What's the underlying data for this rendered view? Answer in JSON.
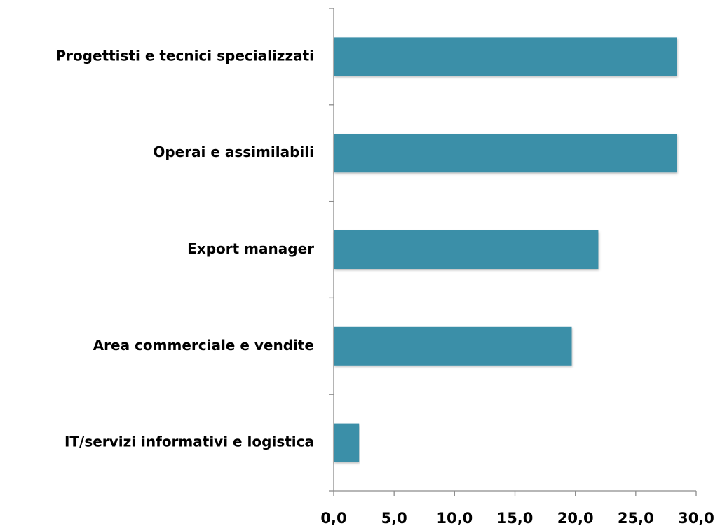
{
  "chart_data": {
    "type": "bar",
    "orientation": "horizontal",
    "categories": [
      "Progettisti e tecnici specializzati",
      "Operai e assimilabili",
      "Export manager",
      "Area commerciale e vendite",
      "IT/servizi informativi e logistica"
    ],
    "values": [
      28.4,
      28.4,
      21.9,
      19.7,
      2.1
    ],
    "color": "#3a8fa8",
    "xlim": [
      0,
      30
    ],
    "xticks": [
      {
        "value": 0,
        "label": "0,0"
      },
      {
        "value": 5,
        "label": "5,0"
      },
      {
        "value": 10,
        "label": "10,0"
      },
      {
        "value": 15,
        "label": "15,0"
      },
      {
        "value": 20,
        "label": "20,0"
      },
      {
        "value": 25,
        "label": "25,0"
      },
      {
        "value": 30,
        "label": "30,0"
      }
    ],
    "grid": false
  }
}
